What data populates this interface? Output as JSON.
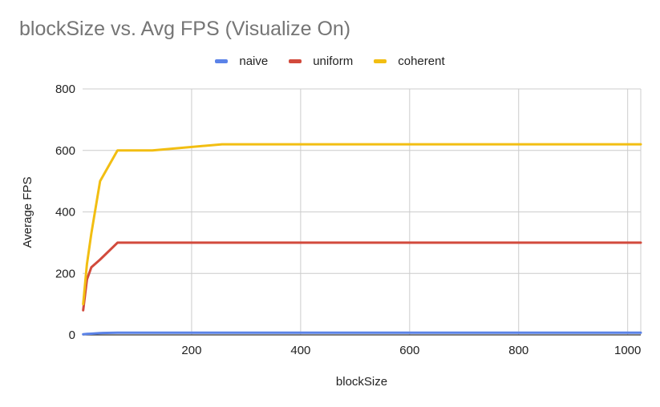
{
  "chart_data": {
    "type": "line",
    "title": "blockSize vs. Avg FPS (Visualize On)",
    "xlabel": "blockSize",
    "ylabel": "Average FPS",
    "xlim": [
      0,
      1024
    ],
    "ylim": [
      0,
      800
    ],
    "x_ticks": [
      "200",
      "400",
      "600",
      "800",
      "1000"
    ],
    "y_ticks": [
      "0",
      "200",
      "400",
      "600",
      "800"
    ],
    "grid": true,
    "legend_position": "top",
    "series": [
      {
        "name": "naive",
        "color": "#5b83e8",
        "x": [
          1,
          8,
          16,
          32,
          64,
          128,
          256,
          512,
          1024
        ],
        "y": [
          2,
          3,
          4,
          6,
          7,
          7,
          7,
          7,
          7
        ]
      },
      {
        "name": "uniform",
        "color": "#d24a3c",
        "x": [
          1,
          8,
          16,
          32,
          64,
          128,
          256,
          512,
          1024
        ],
        "y": [
          80,
          180,
          220,
          245,
          300,
          300,
          300,
          300,
          300
        ]
      },
      {
        "name": "coherent",
        "color": "#f2be12",
        "x": [
          1,
          8,
          16,
          32,
          64,
          128,
          256,
          512,
          1024
        ],
        "y": [
          100,
          230,
          330,
          500,
          600,
          600,
          620,
          620,
          620
        ]
      }
    ]
  }
}
